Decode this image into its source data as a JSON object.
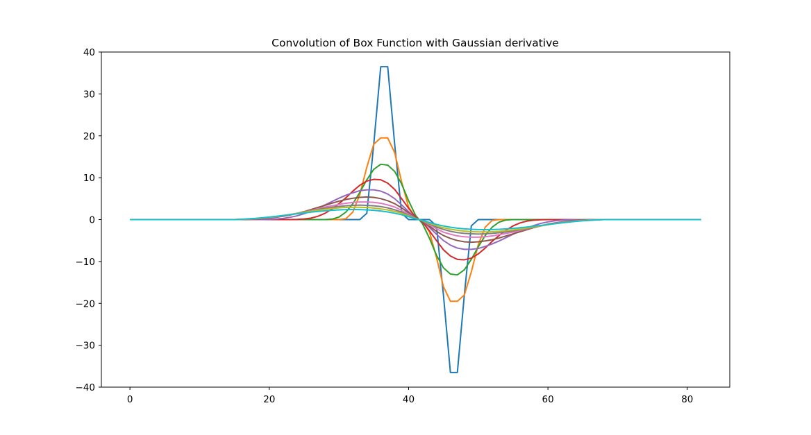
{
  "chart_data": {
    "type": "line",
    "title": "Convolution of Box Function with Gaussian derivative",
    "xlabel": "",
    "ylabel": "",
    "xlim": [
      -4.1,
      86.1
    ],
    "ylim": [
      -40,
      40
    ],
    "grid": false,
    "x_ticks": [
      0,
      20,
      40,
      60,
      80
    ],
    "y_ticks": [
      -40,
      -30,
      -20,
      -10,
      0,
      10,
      20,
      30,
      40
    ],
    "x_tick_labels": [
      "0",
      "20",
      "40",
      "60",
      "80"
    ],
    "y_tick_labels": [
      "−40",
      "−30",
      "−20",
      "−10",
      "0",
      "10",
      "20",
      "30",
      "40"
    ],
    "x": [
      0,
      1,
      2,
      3,
      4,
      5,
      6,
      7,
      8,
      9,
      10,
      11,
      12,
      13,
      14,
      15,
      16,
      17,
      18,
      19,
      20,
      21,
      22,
      23,
      24,
      25,
      26,
      27,
      28,
      29,
      30,
      31,
      32,
      33,
      34,
      35,
      36,
      37,
      38,
      39,
      40,
      41,
      42,
      43,
      44,
      45,
      46,
      47,
      48,
      49,
      50,
      51,
      52,
      53,
      54,
      55,
      56,
      57,
      58,
      59,
      60,
      61,
      62,
      63,
      64,
      65,
      66,
      67,
      68,
      69,
      70,
      71,
      72,
      73,
      74,
      75,
      76,
      77,
      78,
      79,
      80,
      81,
      82
    ],
    "series": [
      {
        "color": "#1f77b4",
        "values": [
          0,
          0,
          0,
          0,
          0,
          0,
          0,
          0,
          0,
          0,
          0,
          0,
          0,
          0,
          0,
          0,
          0,
          0,
          0,
          0,
          0,
          0,
          0,
          0,
          0,
          0,
          0,
          0,
          0,
          0,
          0,
          0,
          0,
          0,
          1.5,
          18,
          36.5,
          36.5,
          18,
          1.5,
          0,
          0,
          0,
          0,
          -1.5,
          -18,
          -36.5,
          -36.5,
          -18,
          -1.5,
          0,
          0,
          0,
          0,
          0,
          0,
          0,
          0,
          0,
          0,
          0,
          0,
          0,
          0,
          0,
          0,
          0,
          0,
          0,
          0,
          0,
          0,
          0,
          0,
          0,
          0,
          0,
          0,
          0,
          0,
          0,
          0,
          0
        ]
      },
      {
        "color": "#ff7f0e",
        "values": [
          0,
          0,
          0,
          0,
          0,
          0,
          0,
          0,
          0,
          0,
          0,
          0,
          0,
          0,
          0,
          0,
          0,
          0,
          0,
          0,
          0,
          0,
          0,
          0,
          0,
          0,
          0,
          0,
          0,
          0,
          0,
          0.2,
          1.8,
          6,
          12.5,
          18,
          19.5,
          19.5,
          16,
          9,
          3,
          0.4,
          -0.4,
          -3,
          -9,
          -16,
          -19.5,
          -19.5,
          -18,
          -12.5,
          -6,
          -1.8,
          -0.2,
          0,
          0,
          0,
          0,
          0,
          0,
          0,
          0,
          0,
          0,
          0,
          0,
          0,
          0,
          0,
          0,
          0,
          0,
          0,
          0,
          0,
          0,
          0,
          0,
          0,
          0,
          0,
          0,
          0,
          0
        ]
      },
      {
        "color": "#2ca02c",
        "values": [
          0,
          0,
          0,
          0,
          0,
          0,
          0,
          0,
          0,
          0,
          0,
          0,
          0,
          0,
          0,
          0,
          0,
          0,
          0,
          0,
          0,
          0,
          0,
          0,
          0,
          0,
          0,
          0,
          0,
          0.1,
          0.6,
          1.8,
          3.8,
          6.5,
          9.5,
          12,
          13.2,
          13,
          11.5,
          8.5,
          4.5,
          1,
          -1,
          -4.5,
          -8.5,
          -11.5,
          -13,
          -13.2,
          -12,
          -9.5,
          -6.5,
          -3.8,
          -1.8,
          -0.6,
          -0.1,
          0,
          0,
          0,
          0,
          0,
          0,
          0,
          0,
          0,
          0,
          0,
          0,
          0,
          0,
          0,
          0,
          0,
          0,
          0,
          0,
          0,
          0,
          0,
          0,
          0,
          0,
          0,
          0
        ]
      },
      {
        "color": "#d62728",
        "values": [
          0,
          0,
          0,
          0,
          0,
          0,
          0,
          0,
          0,
          0,
          0,
          0,
          0,
          0,
          0,
          0,
          0,
          0,
          0,
          0,
          0,
          0,
          0,
          0,
          0.05,
          0.15,
          0.35,
          0.8,
          1.5,
          2.5,
          3.8,
          5.2,
          6.8,
          8.2,
          9.2,
          9.6,
          9.5,
          8.7,
          7.2,
          5,
          2.7,
          0.6,
          -0.6,
          -2.7,
          -5,
          -7.2,
          -8.7,
          -9.5,
          -9.6,
          -9.2,
          -8.2,
          -6.8,
          -5.2,
          -3.8,
          -2.5,
          -1.5,
          -0.8,
          -0.35,
          -0.15,
          -0.05,
          0,
          0,
          0,
          0,
          0,
          0,
          0,
          0,
          0,
          0,
          0,
          0,
          0,
          0,
          0,
          0,
          0,
          0,
          0,
          0,
          0,
          0,
          0
        ]
      },
      {
        "color": "#9467bd",
        "values": [
          0,
          0,
          0,
          0,
          0,
          0,
          0,
          0,
          0,
          0,
          0,
          0,
          0,
          0,
          0,
          0,
          0,
          0,
          0,
          0,
          0.05,
          0.15,
          0.3,
          0.55,
          0.9,
          1.4,
          2,
          2.7,
          3.5,
          4.3,
          5.1,
          5.8,
          6.4,
          6.9,
          7.1,
          7.1,
          6.8,
          6.1,
          5,
          3.5,
          1.9,
          0.4,
          -0.4,
          -1.9,
          -3.5,
          -5,
          -6.1,
          -6.8,
          -7.1,
          -7.1,
          -6.9,
          -6.4,
          -5.8,
          -5.1,
          -4.3,
          -3.5,
          -2.7,
          -2,
          -1.4,
          -0.9,
          -0.55,
          -0.3,
          -0.15,
          -0.05,
          0,
          0,
          0,
          0,
          0,
          0,
          0,
          0,
          0,
          0,
          0,
          0,
          0,
          0,
          0,
          0,
          0,
          0,
          0
        ]
      },
      {
        "color": "#8c564b",
        "values": [
          0,
          0,
          0,
          0,
          0,
          0,
          0,
          0,
          0,
          0,
          0,
          0,
          0,
          0,
          0,
          0,
          0,
          0.05,
          0.1,
          0.2,
          0.35,
          0.55,
          0.8,
          1.1,
          1.5,
          1.9,
          2.4,
          2.9,
          3.4,
          3.9,
          4.4,
          4.8,
          5.1,
          5.3,
          5.4,
          5.3,
          5,
          4.5,
          3.8,
          2.8,
          1.6,
          0.4,
          -0.4,
          -1.6,
          -2.8,
          -3.8,
          -4.5,
          -5,
          -5.3,
          -5.4,
          -5.3,
          -5.1,
          -4.8,
          -4.4,
          -3.9,
          -3.4,
          -2.9,
          -2.4,
          -1.9,
          -1.5,
          -1.1,
          -0.8,
          -0.55,
          -0.35,
          -0.2,
          -0.1,
          -0.05,
          0,
          0,
          0,
          0,
          0,
          0,
          0,
          0,
          0,
          0,
          0,
          0,
          0,
          0,
          0,
          0
        ]
      },
      {
        "color": "#e377c2",
        "values": [
          0,
          0,
          0,
          0,
          0,
          0,
          0,
          0,
          0,
          0,
          0,
          0,
          0,
          0,
          0,
          0,
          0.05,
          0.1,
          0.18,
          0.3,
          0.45,
          0.65,
          0.9,
          1.2,
          1.5,
          1.8,
          2.2,
          2.6,
          3,
          3.3,
          3.6,
          3.9,
          4.1,
          4.2,
          4.2,
          4.1,
          3.9,
          3.5,
          3,
          2.2,
          1.3,
          0.3,
          -0.3,
          -1.3,
          -2.2,
          -3,
          -3.5,
          -3.9,
          -4.1,
          -4.2,
          -4.2,
          -4.1,
          -3.9,
          -3.6,
          -3.3,
          -3,
          -2.6,
          -2.2,
          -1.8,
          -1.5,
          -1.2,
          -0.9,
          -0.65,
          -0.45,
          -0.3,
          -0.18,
          -0.1,
          -0.05,
          0,
          0,
          0,
          0,
          0,
          0,
          0,
          0,
          0,
          0,
          0,
          0,
          0,
          0,
          0
        ]
      },
      {
        "color": "#7f7f7f",
        "values": [
          0,
          0,
          0,
          0,
          0,
          0,
          0,
          0,
          0,
          0,
          0,
          0,
          0,
          0,
          0,
          0,
          0.05,
          0.12,
          0.22,
          0.35,
          0.5,
          0.7,
          0.95,
          1.2,
          1.5,
          1.8,
          2.1,
          2.4,
          2.7,
          2.95,
          3.15,
          3.3,
          3.4,
          3.45,
          3.4,
          3.3,
          3.1,
          2.8,
          2.35,
          1.8,
          1.05,
          0.3,
          -0.3,
          -1.05,
          -1.8,
          -2.35,
          -2.8,
          -3.1,
          -3.3,
          -3.4,
          -3.45,
          -3.4,
          -3.3,
          -3.15,
          -2.95,
          -2.7,
          -2.4,
          -2.1,
          -1.8,
          -1.5,
          -1.2,
          -0.95,
          -0.7,
          -0.5,
          -0.35,
          -0.22,
          -0.12,
          -0.05,
          0,
          0,
          0,
          0,
          0,
          0,
          0,
          0,
          0,
          0,
          0,
          0,
          0,
          0,
          0
        ]
      },
      {
        "color": "#bcbd22",
        "values": [
          0,
          0,
          0,
          0,
          0,
          0,
          0,
          0,
          0,
          0,
          0,
          0,
          0,
          0,
          0,
          0,
          0.06,
          0.14,
          0.25,
          0.38,
          0.55,
          0.75,
          0.98,
          1.22,
          1.48,
          1.74,
          2,
          2.25,
          2.47,
          2.65,
          2.8,
          2.9,
          2.95,
          2.95,
          2.88,
          2.75,
          2.55,
          2.3,
          1.95,
          1.5,
          0.9,
          0.25,
          -0.25,
          -0.9,
          -1.5,
          -1.95,
          -2.3,
          -2.55,
          -2.75,
          -2.88,
          -2.95,
          -2.95,
          -2.9,
          -2.8,
          -2.65,
          -2.47,
          -2.25,
          -2,
          -1.74,
          -1.48,
          -1.22,
          -0.98,
          -0.75,
          -0.55,
          -0.38,
          -0.25,
          -0.14,
          -0.06,
          0,
          0,
          0,
          0,
          0,
          0,
          0,
          0,
          0,
          0,
          0,
          0,
          0,
          0,
          0
        ]
      },
      {
        "color": "#17becf",
        "values": [
          0,
          0,
          0,
          0,
          0,
          0,
          0,
          0,
          0,
          0,
          0,
          0,
          0,
          0,
          0,
          0,
          0.08,
          0.18,
          0.3,
          0.44,
          0.6,
          0.78,
          0.98,
          1.18,
          1.38,
          1.58,
          1.77,
          1.95,
          2.1,
          2.22,
          2.32,
          2.38,
          2.4,
          2.38,
          2.32,
          2.22,
          2.05,
          1.82,
          1.52,
          1.15,
          0.7,
          0.2,
          -0.2,
          -0.7,
          -1.15,
          -1.52,
          -1.82,
          -2.05,
          -2.22,
          -2.32,
          -2.38,
          -2.4,
          -2.38,
          -2.32,
          -2.22,
          -2.1,
          -1.95,
          -1.77,
          -1.58,
          -1.38,
          -1.18,
          -0.98,
          -0.78,
          -0.6,
          -0.44,
          -0.3,
          -0.18,
          -0.08,
          0,
          0,
          0,
          0,
          0,
          0,
          0,
          0,
          0,
          0,
          0,
          0,
          0,
          0,
          0
        ]
      }
    ]
  }
}
